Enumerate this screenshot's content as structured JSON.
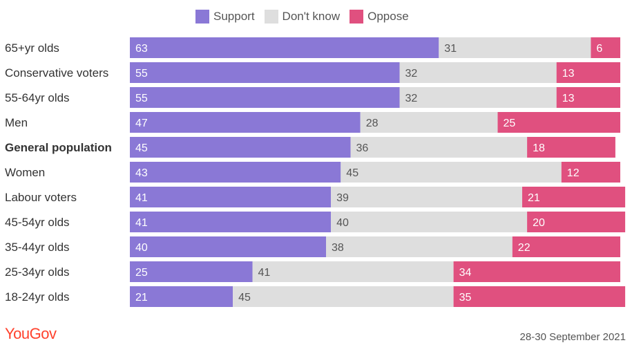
{
  "legend": {
    "support": {
      "label": "Support",
      "color": "#8a78d6"
    },
    "dont_know": {
      "label": "Don't know",
      "color": "#dedede"
    },
    "oppose": {
      "label": "Oppose",
      "color": "#e0507f"
    }
  },
  "chart_data": {
    "type": "bar",
    "orientation": "horizontal",
    "stacked": true,
    "categories": [
      "65+yr olds",
      "Conservative voters",
      "55-64yr olds",
      "Men",
      "General population",
      "Women",
      "Labour voters",
      "45-54yr olds",
      "35-44yr olds",
      "25-34yr olds",
      "18-24yr olds"
    ],
    "highlight_category": "General population",
    "series": [
      {
        "name": "Support",
        "values": [
          63,
          55,
          55,
          47,
          45,
          43,
          41,
          41,
          40,
          25,
          21
        ]
      },
      {
        "name": "Don't know",
        "values": [
          31,
          32,
          32,
          28,
          36,
          45,
          39,
          40,
          38,
          41,
          45
        ]
      },
      {
        "name": "Oppose",
        "values": [
          6,
          13,
          13,
          25,
          18,
          12,
          21,
          20,
          22,
          34,
          35
        ]
      }
    ],
    "xlim": [
      0,
      100
    ],
    "grid": false,
    "legend_position": "top"
  },
  "footer": {
    "brand": "YouGov",
    "date": "28-30 September 2021"
  }
}
